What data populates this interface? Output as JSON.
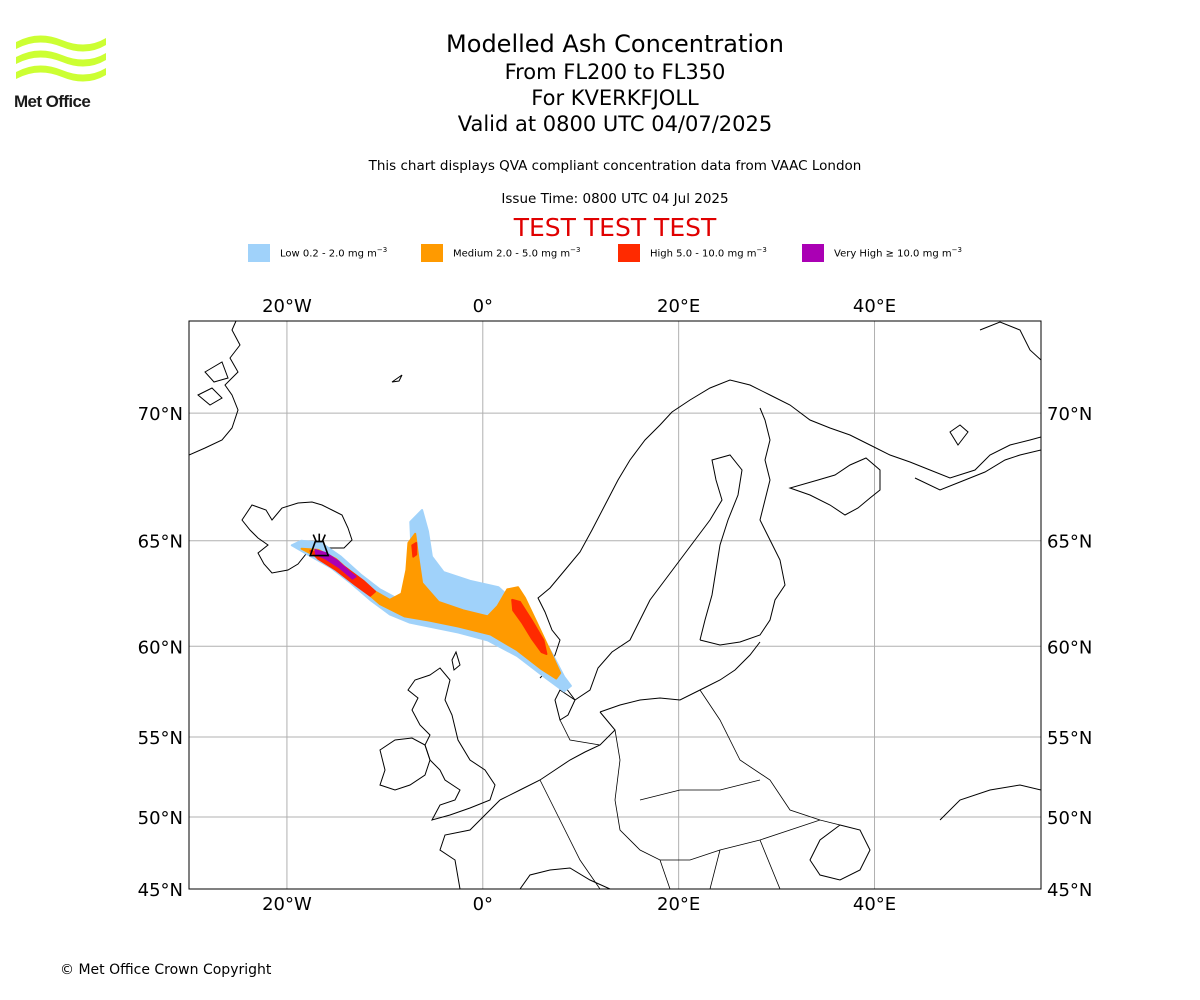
{
  "header": {
    "title": "Modelled Ash Concentration",
    "level_range": "From FL200 to FL350",
    "volcano": "For KVERKFJOLL",
    "valid_time": "Valid at 0800 UTC 04/07/2025",
    "description": "This chart displays QVA compliant concentration data from VAAC London",
    "issue_time": "Issue Time: 0800 UTC 04 Jul 2025",
    "test_banner": "TEST TEST TEST"
  },
  "logo": {
    "text": "Met Office",
    "color": "#ccff33"
  },
  "legend": {
    "unit_base": "mg m",
    "unit_exp": "−3",
    "items": [
      {
        "label": "Low 0.2 - 2.0 ",
        "color": "#a0d2fa"
      },
      {
        "label": "Medium 2.0 - 5.0 ",
        "color": "#ff9a00"
      },
      {
        "label": "High 5.0 - 10.0 ",
        "color": "#ff2a00"
      },
      {
        "label": "Very High ≥ 10.0 ",
        "color": "#aa00b4"
      }
    ]
  },
  "map": {
    "projection": "mercator",
    "lon_range": [
      -30,
      57
    ],
    "lat_range": [
      45,
      73
    ],
    "lon_ticks": [
      {
        "value": -20,
        "label": "20°W"
      },
      {
        "value": 0,
        "label": "0°"
      },
      {
        "value": 20,
        "label": "20°E"
      },
      {
        "value": 40,
        "label": "40°E"
      }
    ],
    "lat_ticks": [
      {
        "value": 70,
        "label": "70°N"
      },
      {
        "value": 65,
        "label": "65°N"
      },
      {
        "value": 60,
        "label": "60°N"
      },
      {
        "value": 55,
        "label": "55°N"
      },
      {
        "value": 50,
        "label": "50°N"
      },
      {
        "value": 45,
        "label": "45°N"
      }
    ],
    "gridlines": true,
    "volcano_location": {
      "lon": -16.7,
      "lat": 64.7
    },
    "ash_regions": [
      {
        "level": "low",
        "color": "#a0d2fa",
        "points": [
          [
            -19.5,
            64.8
          ],
          [
            -18.5,
            65.0
          ],
          [
            -16.5,
            64.9
          ],
          [
            -14.5,
            64.3
          ],
          [
            -12.5,
            63.5
          ],
          [
            -10.5,
            62.8
          ],
          [
            -8.5,
            62.3
          ],
          [
            -7.6,
            63.5
          ],
          [
            -7.3,
            64.8
          ],
          [
            -7.4,
            65.8
          ],
          [
            -6.2,
            66.3
          ],
          [
            -5.6,
            65.4
          ],
          [
            -5.2,
            64.3
          ],
          [
            -4.0,
            63.6
          ],
          [
            -1.3,
            63.2
          ],
          [
            1.6,
            62.9
          ],
          [
            3.5,
            62.1
          ],
          [
            5.5,
            61.0
          ],
          [
            7.2,
            59.5
          ],
          [
            8.3,
            58.4
          ],
          [
            9.0,
            57.9
          ],
          [
            8.3,
            57.6
          ],
          [
            6.5,
            58.3
          ],
          [
            3.5,
            59.5
          ],
          [
            0.5,
            60.3
          ],
          [
            -2.5,
            60.7
          ],
          [
            -5.5,
            61.0
          ],
          [
            -7.5,
            61.2
          ],
          [
            -9.5,
            61.6
          ],
          [
            -11.5,
            62.3
          ],
          [
            -13.5,
            63.1
          ],
          [
            -15.5,
            63.8
          ],
          [
            -17.5,
            64.3
          ]
        ]
      },
      {
        "level": "medium",
        "color": "#ff9a00",
        "points": [
          [
            -18.5,
            64.65
          ],
          [
            -16.8,
            64.6
          ],
          [
            -15.0,
            64.2
          ],
          [
            -13.0,
            63.4
          ],
          [
            -11.0,
            62.7
          ],
          [
            -9.5,
            62.3
          ],
          [
            -8.3,
            62.6
          ],
          [
            -7.8,
            63.7
          ],
          [
            -7.6,
            64.9
          ],
          [
            -6.9,
            65.3
          ],
          [
            -6.6,
            64.3
          ],
          [
            -6.2,
            63.1
          ],
          [
            -4.5,
            62.2
          ],
          [
            -2.0,
            61.8
          ],
          [
            0.5,
            61.5
          ],
          [
            1.5,
            62.0
          ],
          [
            2.5,
            62.8
          ],
          [
            3.6,
            62.9
          ],
          [
            4.3,
            62.4
          ],
          [
            5.5,
            61.2
          ],
          [
            7.2,
            59.4
          ],
          [
            7.9,
            58.6
          ],
          [
            7.5,
            58.3
          ],
          [
            6.0,
            58.8
          ],
          [
            3.5,
            59.8
          ],
          [
            0.8,
            60.6
          ],
          [
            -2.5,
            61.0
          ],
          [
            -5.5,
            61.3
          ],
          [
            -8.0,
            61.5
          ],
          [
            -10.5,
            62.1
          ],
          [
            -12.5,
            62.9
          ],
          [
            -14.5,
            63.6
          ],
          [
            -16.5,
            64.2
          ]
        ]
      },
      {
        "level": "high",
        "color": "#ff2a00",
        "points": [
          [
            -17.6,
            64.55
          ],
          [
            -16.0,
            64.35
          ],
          [
            -14.0,
            63.8
          ],
          [
            -12.2,
            63.2
          ],
          [
            -11.0,
            62.7
          ],
          [
            -11.5,
            62.5
          ],
          [
            -13.0,
            63.0
          ],
          [
            -15.0,
            63.7
          ],
          [
            -16.8,
            64.2
          ]
        ]
      },
      {
        "level": "high",
        "color": "#ff2a00",
        "points": [
          [
            -7.2,
            64.8
          ],
          [
            -6.8,
            64.9
          ],
          [
            -6.8,
            64.4
          ],
          [
            -7.1,
            64.3
          ]
        ]
      },
      {
        "level": "high",
        "color": "#ff2a00",
        "points": [
          [
            3.0,
            62.3
          ],
          [
            3.8,
            62.2
          ],
          [
            5.0,
            61.3
          ],
          [
            6.2,
            60.3
          ],
          [
            6.5,
            59.6
          ],
          [
            6.0,
            59.7
          ],
          [
            5.0,
            60.4
          ],
          [
            4.0,
            61.2
          ],
          [
            3.1,
            61.8
          ]
        ]
      },
      {
        "level": "very_high",
        "color": "#aa00b4",
        "points": [
          [
            -17.1,
            64.6
          ],
          [
            -16.0,
            64.45
          ],
          [
            -14.8,
            64.1
          ],
          [
            -13.6,
            63.6
          ],
          [
            -13.0,
            63.4
          ],
          [
            -13.3,
            63.3
          ],
          [
            -14.6,
            63.8
          ],
          [
            -16.0,
            64.2
          ],
          [
            -17.0,
            64.4
          ]
        ]
      }
    ]
  },
  "footer": {
    "copyright": "© Met Office Crown Copyright"
  }
}
